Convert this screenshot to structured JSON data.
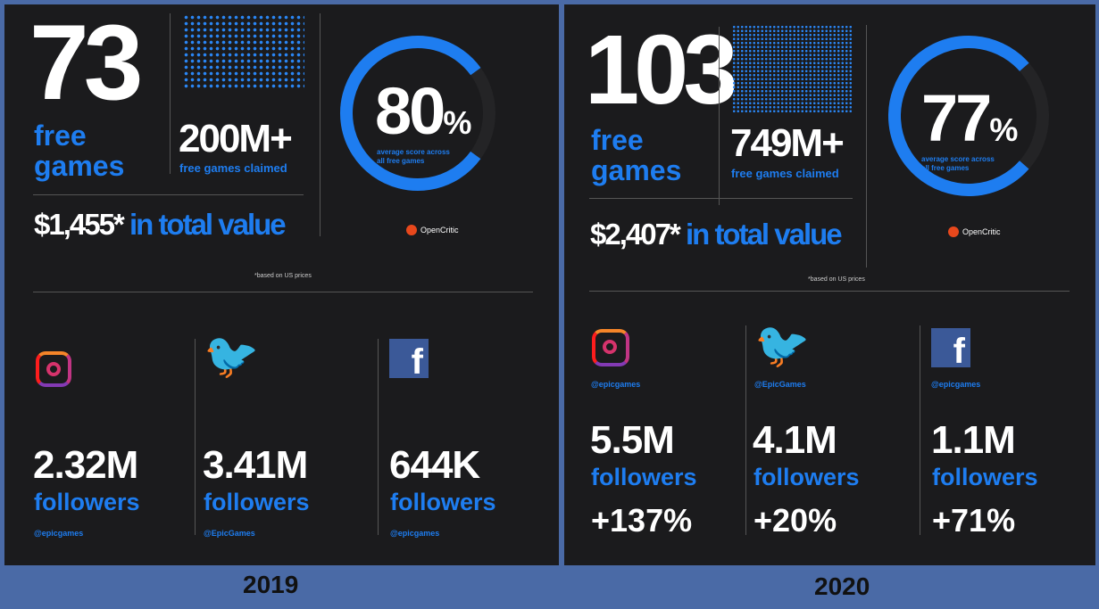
{
  "panels": [
    {
      "year": "2019",
      "free_games_count": "73",
      "free_games_label_1": "free",
      "free_games_label_2": "games",
      "claimed_value": "200M+",
      "claimed_label": "free games claimed",
      "total_value": "$1,455*",
      "total_value_label": "in total value",
      "score_value": "80",
      "score_unit": "%",
      "score_fraction": 0.8,
      "score_label_1": "average score across",
      "score_label_2": "all free games",
      "score_source": "OpenCritic",
      "footnote": "*based on US prices",
      "social": [
        {
          "network": "instagram",
          "followers": "2.32M",
          "followers_label": "followers",
          "handle": "@epicgames"
        },
        {
          "network": "twitter",
          "followers": "3.41M",
          "followers_label": "followers",
          "handle": "@EpicGames"
        },
        {
          "network": "facebook",
          "followers": "644K",
          "followers_label": "followers",
          "handle": "@epicgames"
        }
      ]
    },
    {
      "year": "2020",
      "free_games_count": "103",
      "free_games_label_1": "free",
      "free_games_label_2": "games",
      "claimed_value": "749M+",
      "claimed_label": "free games claimed",
      "total_value": "$2,407*",
      "total_value_label": "in total value",
      "score_value": "77",
      "score_unit": "%",
      "score_fraction": 0.77,
      "score_label_1": "average score across",
      "score_label_2": "all free games",
      "score_source": "OpenCritic",
      "footnote": "*based on US prices",
      "social": [
        {
          "network": "instagram",
          "handle": "@epicgames",
          "followers": "5.5M",
          "followers_label": "followers",
          "growth": "+137%"
        },
        {
          "network": "twitter",
          "handle": "@EpicGames",
          "followers": "4.1M",
          "followers_label": "followers",
          "growth": "+20%"
        },
        {
          "network": "facebook",
          "handle": "@epicgames",
          "followers": "1.1M",
          "followers_label": "followers",
          "growth": "+71%"
        }
      ]
    }
  ],
  "colors": {
    "accent": "#1e7df0",
    "panel_bg": "#1b1b1d",
    "page_bg": "#4a6aa6"
  }
}
